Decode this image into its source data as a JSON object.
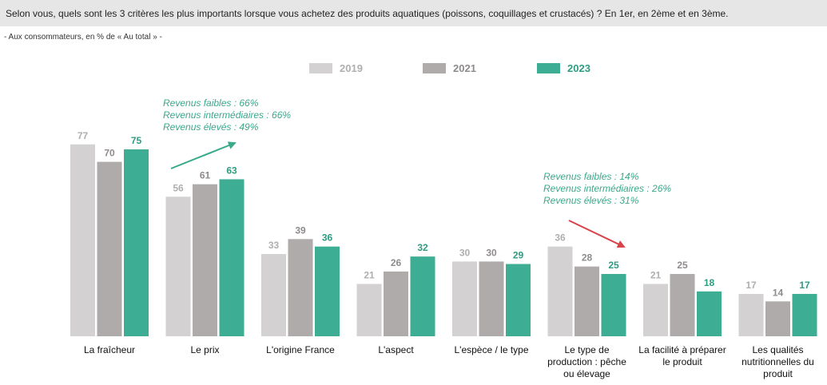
{
  "header": {
    "question": "Selon vous, quels sont les 3 critères les plus importants lorsque vous achetez des produits aquatiques (poissons, coquillages et crustacés) ? En 1er, en 2ème et en 3ème.",
    "subtitle": "- Aux consommateurs, en % de « Au total » -"
  },
  "colors": {
    "2019": "#d3d1d1",
    "2021": "#afabaa",
    "2023": "#3dae94",
    "label_2019": "#b0aeae",
    "label_2021": "#8f8b8b",
    "label_2023": "#2e9c80",
    "arrow_up": "#3aa88a",
    "arrow_down": "#d8434a"
  },
  "chart_data": {
    "type": "bar",
    "categories": [
      [
        "La fraîcheur"
      ],
      [
        "Le prix"
      ],
      [
        "L'origine France"
      ],
      [
        "L'aspect"
      ],
      [
        "L'espèce / le type"
      ],
      [
        "Le type de",
        "production : pêche",
        "ou élevage"
      ],
      [
        "La facilité à préparer",
        "le produit"
      ],
      [
        "Les qualités",
        "nutritionnelles du",
        "produit"
      ]
    ],
    "series": [
      {
        "name": "2019",
        "values": [
          77,
          56,
          33,
          21,
          30,
          36,
          21,
          17
        ]
      },
      {
        "name": "2021",
        "values": [
          70,
          61,
          39,
          26,
          30,
          28,
          25,
          14
        ]
      },
      {
        "name": "2023",
        "values": [
          75,
          63,
          36,
          32,
          29,
          25,
          18,
          17
        ]
      }
    ],
    "ylim": [
      0,
      100
    ],
    "grid": false,
    "legend": "top-center",
    "annotations": [
      {
        "category": "Le prix",
        "direction": "up",
        "lines": [
          "Revenus faibles : 66%",
          "Revenus intermédiaires : 66%",
          "Revenus élevés : 49%"
        ]
      },
      {
        "category": "Le type de production : pêche ou élevage",
        "direction": "down",
        "lines": [
          "Revenus faibles : 14%",
          "Revenus intermédiaires : 26%",
          "Revenus élevés : 31%"
        ]
      }
    ]
  }
}
